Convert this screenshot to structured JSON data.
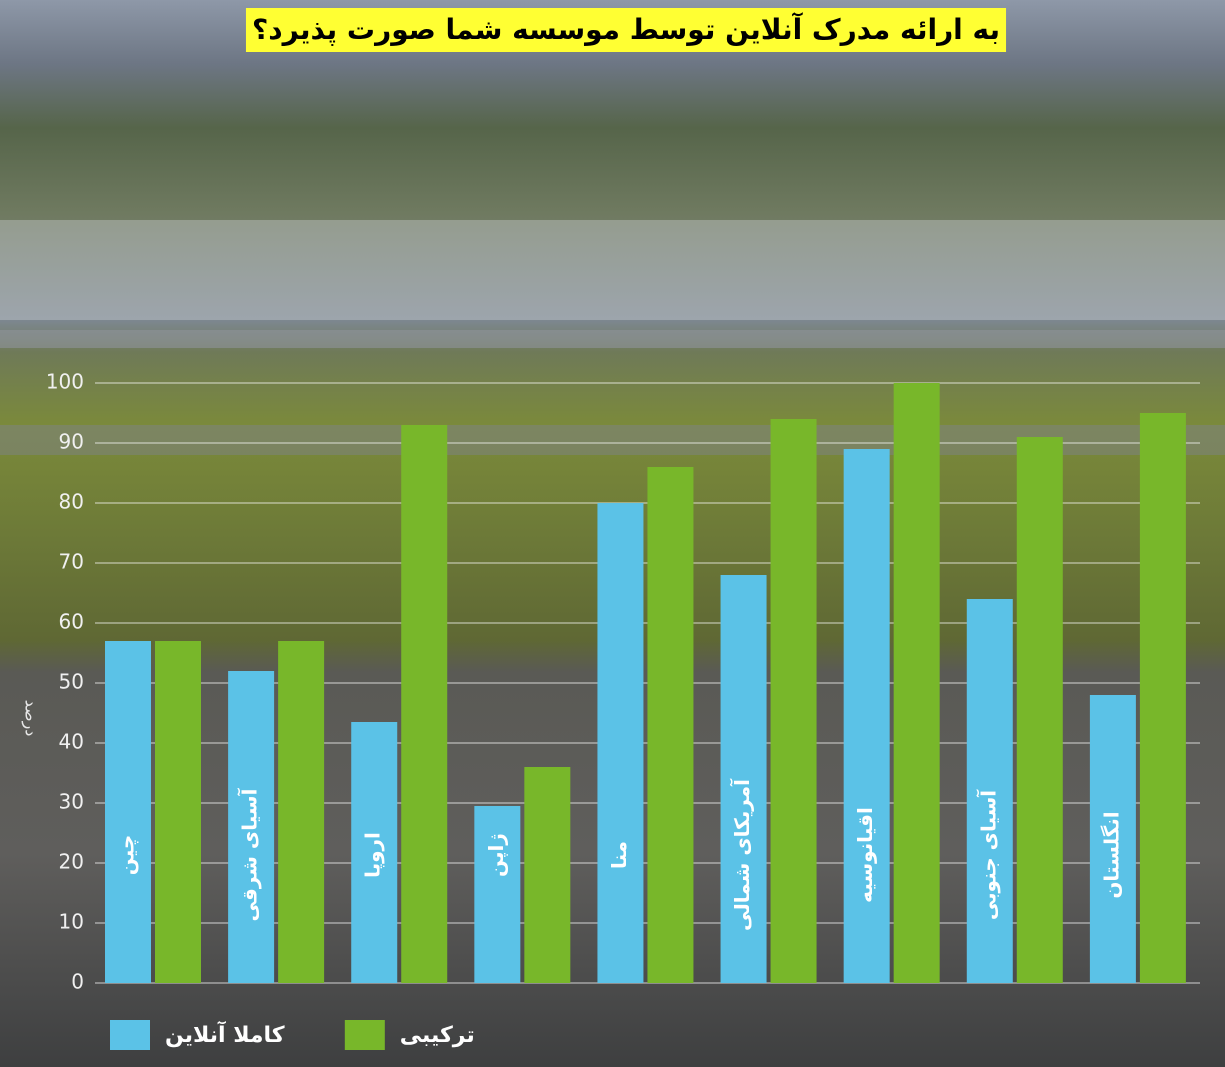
{
  "chart_data": {
    "type": "bar",
    "title": "به ارائه مدرک آنلاین توسط موسسه شما صورت پذیرد؟",
    "ylabel": "درصد",
    "categories": [
      "چین",
      "آسیای شرقی",
      "اروپا",
      "ژاپن",
      "منا",
      "آمریکای شمالی",
      "اقیانوسیه",
      "آسیای جنوبی",
      "انگلستان"
    ],
    "series": [
      {
        "name": "کاملا آنلاین",
        "color": "#5bc2e7",
        "values": [
          57,
          52,
          43.5,
          29.5,
          80,
          68,
          89,
          64,
          48
        ]
      },
      {
        "name": "ترکیبی",
        "color": "#78b72a",
        "values": [
          57,
          57,
          93,
          36,
          86,
          94,
          100,
          91,
          95
        ]
      }
    ],
    "ylim": [
      0,
      100
    ],
    "yticks": [
      0,
      10,
      20,
      30,
      40,
      50,
      60,
      70,
      80,
      90,
      100
    ],
    "grid": true
  }
}
